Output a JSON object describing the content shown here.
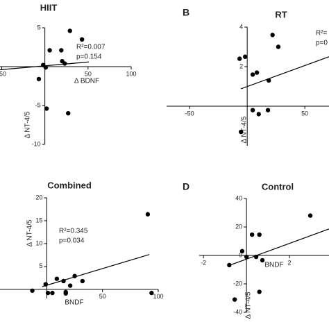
{
  "chart_data": [
    {
      "type": "scatter",
      "title": "HIIT",
      "xlabel": "Δ BDNF",
      "ylabel": "Δ NT-4/5",
      "x": [
        29,
        43,
        5.6,
        19,
        20,
        23,
        -2,
        1,
        -7,
        2,
        27
      ],
      "y": [
        4.6,
        3.5,
        2.1,
        2.1,
        0.7,
        0.4,
        0.2,
        -0.1,
        -1.6,
        -5.4,
        -6.0
      ],
      "xlim": [
        -52,
        100
      ],
      "ylim": [
        -10,
        5
      ],
      "xticks": [
        -50,
        50,
        100
      ],
      "yticks": [
        5,
        -5,
        -10
      ],
      "trend": {
        "x": [
          -52,
          51
        ],
        "y": [
          -0.4,
          0.6
        ]
      },
      "annotations": [
        "R²=0.007",
        "p=0.154"
      ],
      "color": "#000000"
    },
    {
      "type": "scatter",
      "title": "RT",
      "panel_label": "B",
      "ylabel": "Δ NT-4/5",
      "x": [
        22,
        27,
        -6.6,
        -1.8,
        4.8,
        8.4,
        18.7,
        4.8,
        10,
        18,
        -5.4
      ],
      "y": [
        3.6,
        3.0,
        2.4,
        2.5,
        1.6,
        1.7,
        1.3,
        -0.2,
        -0.4,
        -0.2,
        -1.3
      ],
      "xlim": [
        -70,
        71
      ],
      "ylim": [
        -2,
        4
      ],
      "xticks": [
        -50,
        50
      ],
      "yticks": [
        4,
        2
      ],
      "trend": {
        "x": [
          -5.4,
          71
        ],
        "y": [
          0.88,
          2.5
        ]
      },
      "annotations": [
        "R²=",
        "p=0"
      ],
      "color": "#000000"
    },
    {
      "type": "scatter",
      "title": "Combined",
      "xlabel": "BNDF",
      "ylabel": "Δ NT-4/5",
      "x": [
        90.6,
        94,
        -13,
        -1,
        9,
        15,
        17,
        21,
        25,
        32,
        5,
        1,
        17
      ],
      "y": [
        16.4,
        -0.8,
        -0.3,
        1.1,
        2.3,
        1.8,
        -0.9,
        0.8,
        2.9,
        1.8,
        -0.8,
        -0.8,
        -0.6
      ],
      "xlim": [
        -42,
        100
      ],
      "ylim": [
        -2,
        20
      ],
      "xticks": [
        50,
        100
      ],
      "yticks": [
        5,
        10,
        15,
        20
      ],
      "trend": {
        "x": [
          -4,
          92
        ],
        "y": [
          0.6,
          7.6
        ]
      },
      "annotations": [
        "R²=0.345",
        "p=0.034"
      ],
      "color": "#000000"
    },
    {
      "type": "scatter",
      "title": "Control",
      "panel_label": "D",
      "xlabel": "BNDF",
      "ylabel": "Δ NT-4/5",
      "x": [
        2.97,
        0.26,
        0.6,
        -0.2,
        0,
        0.45,
        0.74,
        -0.8,
        0.6,
        -0.55
      ],
      "y": [
        28,
        14.6,
        14.6,
        3,
        -1,
        -1,
        -3.4,
        -6.8,
        -25.6,
        -31
      ],
      "xlim": [
        -2.2,
        3.84
      ],
      "ylim": [
        -40,
        40
      ],
      "xticks": [
        -2,
        2
      ],
      "yticks": [
        -40,
        -20,
        0,
        20,
        40
      ],
      "trend": {
        "x": [
          -0.8,
          3.84
        ],
        "y": [
          -7,
          18.6
        ]
      },
      "color": "#000000"
    }
  ]
}
